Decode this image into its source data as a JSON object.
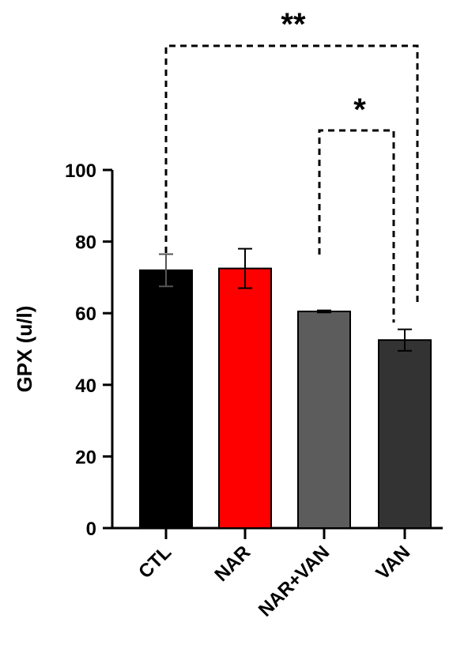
{
  "chart_data": {
    "type": "bar",
    "title": "",
    "xlabel": "",
    "ylabel": "GPX (u/l)",
    "ylim": [
      0,
      100
    ],
    "yticks": [
      "0",
      "20",
      "40",
      "60",
      "80",
      "100"
    ],
    "categories": [
      "CTL",
      "NAR",
      "NAR+VAN",
      "VAN"
    ],
    "values": [
      72,
      72.5,
      60.5,
      52.5
    ],
    "errors": [
      4.5,
      5.5,
      0.3,
      3
    ],
    "colors": [
      "#000000",
      "#ff0000",
      "#5c5c5c",
      "#333333"
    ],
    "grid": false,
    "significance": [
      {
        "from": "CTL",
        "to": "VAN",
        "label": "**"
      },
      {
        "from": "NAR+VAN",
        "to": "VAN",
        "label": "*"
      }
    ]
  }
}
